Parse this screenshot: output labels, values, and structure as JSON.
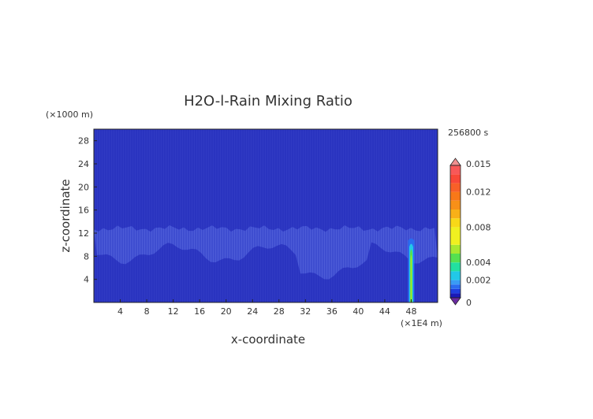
{
  "chart_data": {
    "type": "heatmap",
    "title": "H2O-l-Rain Mixing Ratio",
    "time_label": "256800 s",
    "xlabel": "x-coordinate",
    "ylabel": "z-coordinate",
    "x_unit": "(×1E4 m)",
    "y_unit": "(×1000 m)",
    "xlim": [
      0,
      52
    ],
    "ylim": [
      0,
      30
    ],
    "x_ticks": [
      4,
      8,
      12,
      16,
      20,
      24,
      28,
      32,
      36,
      40,
      44,
      48
    ],
    "y_ticks": [
      4,
      8,
      12,
      16,
      20,
      24,
      28
    ],
    "colorbar": {
      "ticks": [
        "0.015",
        "0.012",
        "0.008",
        "0.004",
        "0.002",
        "0"
      ],
      "tick_values": [
        0.015,
        0.012,
        0.008,
        0.004,
        0.002,
        0
      ],
      "levels": [
        0,
        0.0005,
        0.001,
        0.0015,
        0.002,
        0.003,
        0.004,
        0.005,
        0.006,
        0.008,
        0.009,
        0.01,
        0.011,
        0.012,
        0.013,
        0.014,
        0.015
      ],
      "colors": [
        "#1a1ab8",
        "#1f3fe0",
        "#2a6cf0",
        "#3a9cf5",
        "#22c8e8",
        "#22e0a0",
        "#55e050",
        "#a8e830",
        "#f0f020",
        "#f8d818",
        "#f8b018",
        "#f89018",
        "#f87818",
        "#f86028",
        "#f84838",
        "#f85858",
        "#f87878"
      ],
      "under_color": "#6a2aa0",
      "over_color": "#f09090"
    },
    "field": {
      "background_color": "#2a34c0",
      "cloud_band_z": [
        8.5,
        12.8
      ],
      "cloud_band_color": "#4a5ad8",
      "rain_column": {
        "x": 48,
        "z_range": [
          0,
          11.5
        ],
        "peak_value": 0.008,
        "colors": [
          "#2a6cf0",
          "#22c8e8",
          "#55e050",
          "#a8e830"
        ]
      }
    }
  }
}
